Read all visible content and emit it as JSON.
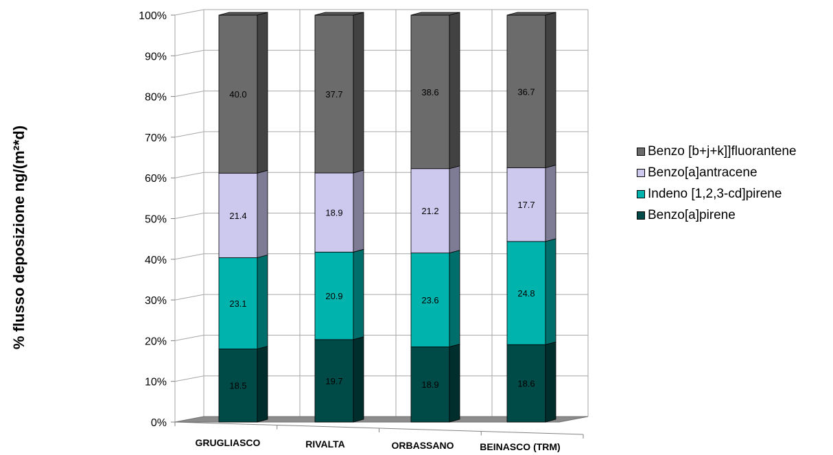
{
  "chart_data": {
    "type": "bar",
    "stacked": true,
    "percent": true,
    "three_d": true,
    "title": "",
    "xlabel": "",
    "ylabel": "% flusso deposizione ng/(m²*d)",
    "ylim": [
      0,
      100
    ],
    "yticks": [
      "0%",
      "10%",
      "20%",
      "30%",
      "40%",
      "50%",
      "60%",
      "70%",
      "80%",
      "90%",
      "100%"
    ],
    "categories": [
      "GRUGLIASCO",
      "RIVALTA",
      "ORBASSANO",
      "BEINASCO (TRM)"
    ],
    "series": [
      {
        "name": "Benzo[a]pirene",
        "values": [
          18.5,
          19.7,
          18.9,
          18.6
        ],
        "color": "#004a48"
      },
      {
        "name": "Indeno [1,2,3-cd]pirene",
        "values": [
          23.1,
          20.9,
          23.6,
          24.8
        ],
        "color": "#00b3ad"
      },
      {
        "name": "Benzo[a]antracene",
        "values": [
          21.4,
          18.9,
          21.2,
          17.7
        ],
        "color": "#ccc8ee"
      },
      {
        "name": "Benzo [b+j+k]]fluorantene",
        "values": [
          40.0,
          37.7,
          38.6,
          36.7
        ],
        "color": "#6b6b6b"
      }
    ],
    "legend": {
      "position": "right",
      "order": [
        "Benzo [b+j+k]]fluorantene",
        "Benzo[a]antracene",
        "Indeno [1,2,3-cd]pirene",
        "Benzo[a]pirene"
      ]
    },
    "grid": true
  }
}
